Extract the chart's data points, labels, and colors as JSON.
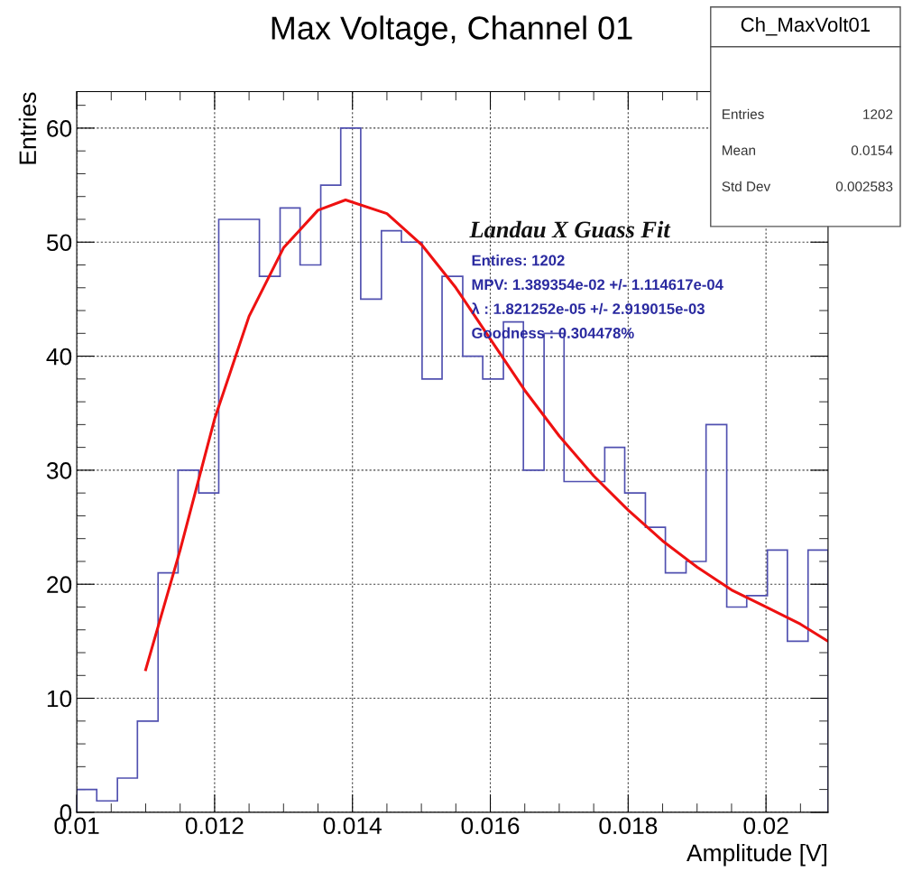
{
  "chart_data": {
    "type": "histogram",
    "title": "Max Voltage, Channel 01",
    "xlabel": "Amplitude [V]",
    "ylabel": "Entries",
    "bins": [
      0.01,
      0.01029,
      0.01059,
      0.01088,
      0.01118,
      0.01147,
      0.01177,
      0.01206,
      0.01236,
      0.01265,
      0.01295,
      0.01324,
      0.01354,
      0.01383,
      0.01412,
      0.01442,
      0.01471,
      0.01501,
      0.0153,
      0.0156,
      0.01589,
      0.01619,
      0.01648,
      0.01678,
      0.01707,
      0.01736,
      0.01766,
      0.01795,
      0.01825,
      0.01854,
      0.01884,
      0.01913,
      0.01943,
      0.01972,
      0.02002,
      0.02031,
      0.02061,
      0.0209
    ],
    "values": [
      2,
      1,
      3,
      8,
      21,
      30,
      28,
      52,
      52,
      47,
      53,
      48,
      55,
      60,
      45,
      51,
      50,
      38,
      47,
      40,
      38,
      43,
      30,
      42,
      29,
      29,
      32,
      28,
      25,
      21,
      22,
      34,
      18,
      19,
      23,
      15,
      23
    ],
    "color": "#5050b0",
    "series": [
      {
        "type": "line",
        "color": "#ee1111",
        "x": [
          0.011,
          0.0115,
          0.012,
          0.0125,
          0.013,
          0.0135,
          0.0139,
          0.0145,
          0.015,
          0.0155,
          0.016,
          0.0165,
          0.017,
          0.0175,
          0.018,
          0.0185,
          0.019,
          0.0195,
          0.02,
          0.0205,
          0.0209
        ],
        "values": [
          12.5,
          23,
          34.5,
          43.5,
          49.5,
          52.8,
          53.7,
          52.5,
          49.8,
          46,
          41.5,
          37,
          33,
          29.5,
          26.5,
          23.8,
          21.5,
          19.5,
          18,
          16.5,
          15
        ]
      }
    ],
    "xlim": [
      0.01,
      0.0209
    ],
    "ylim": [
      0,
      63.2
    ],
    "xticks": [
      {
        "value": 0.01,
        "label": "0.01"
      },
      0.012,
      0.014,
      0.016,
      0.018,
      {
        "value": 0.02,
        "label": "0.02"
      }
    ],
    "yticks": [
      0,
      10,
      20,
      30,
      40,
      50,
      60
    ],
    "grid": true,
    "annotations": [
      "Ch_MaxVolt01",
      "Entries",
      "1202",
      "Mean",
      "0.0154",
      "Std Dev",
      "0.002583",
      "Landau X Guass Fit",
      "Entires: 1202",
      "MPV: 1.389354e-02 +/- 1.114617e-04",
      "λ : 1.821252e-05 +/- 2.919015e-03",
      "Goodness : 0.304478%"
    ]
  }
}
